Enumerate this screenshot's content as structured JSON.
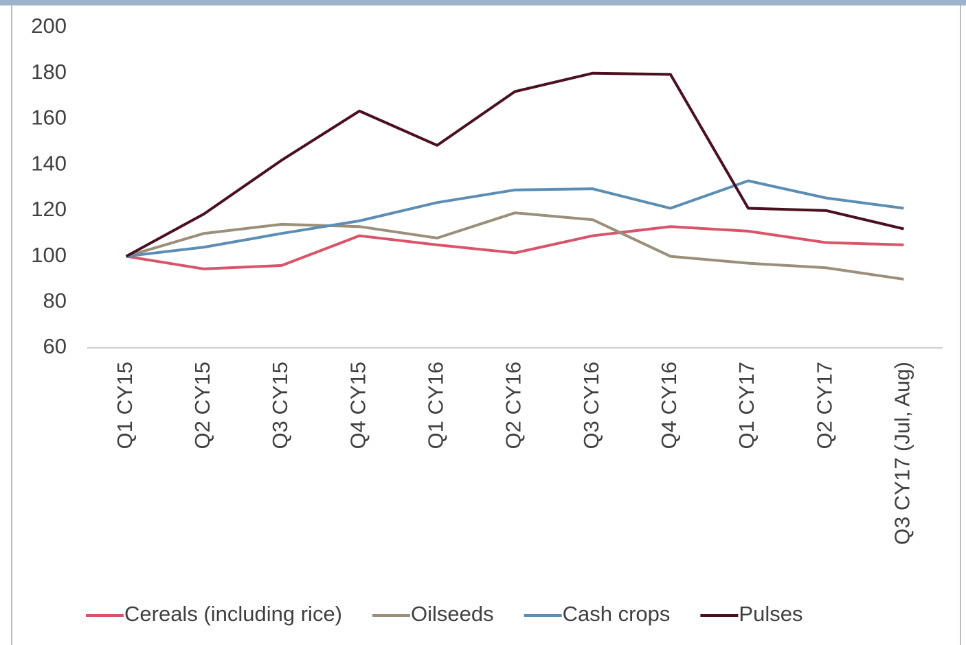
{
  "chart_data": {
    "type": "line",
    "categories": [
      "Q1 CY15",
      "Q2 CY15",
      "Q3 CY15",
      "Q4 CY15",
      "Q1 CY16",
      "Q2 CY16",
      "Q3 CY16",
      "Q4 CY16",
      "Q1 CY17",
      "Q2 CY17",
      "Q3 CY17 (Jul, Aug)"
    ],
    "series": [
      {
        "name": "Cereals (including rice)",
        "color": "#d9546a",
        "values": [
          100,
          94.5,
          96,
          109,
          105,
          101.5,
          109,
          113,
          111,
          106,
          105
        ]
      },
      {
        "name": "Oilseeds",
        "color": "#9b8f7a",
        "values": [
          100,
          110,
          114,
          113,
          108,
          119,
          116,
          100,
          97,
          95,
          90
        ]
      },
      {
        "name": "Cash crops",
        "color": "#5b8db5",
        "values": [
          100,
          104,
          110,
          115.5,
          123.5,
          129,
          129.5,
          121,
          133,
          125.5,
          121
        ]
      },
      {
        "name": "Pulses",
        "color": "#4a1020",
        "values": [
          100,
          118.5,
          142,
          163.5,
          148.5,
          172,
          180,
          179.5,
          121,
          120,
          112
        ]
      }
    ],
    "ylim": [
      60,
      200
    ],
    "yticks": [
      60,
      80,
      100,
      120,
      140,
      160,
      180,
      200
    ],
    "grid": false,
    "legend": "bottom"
  }
}
